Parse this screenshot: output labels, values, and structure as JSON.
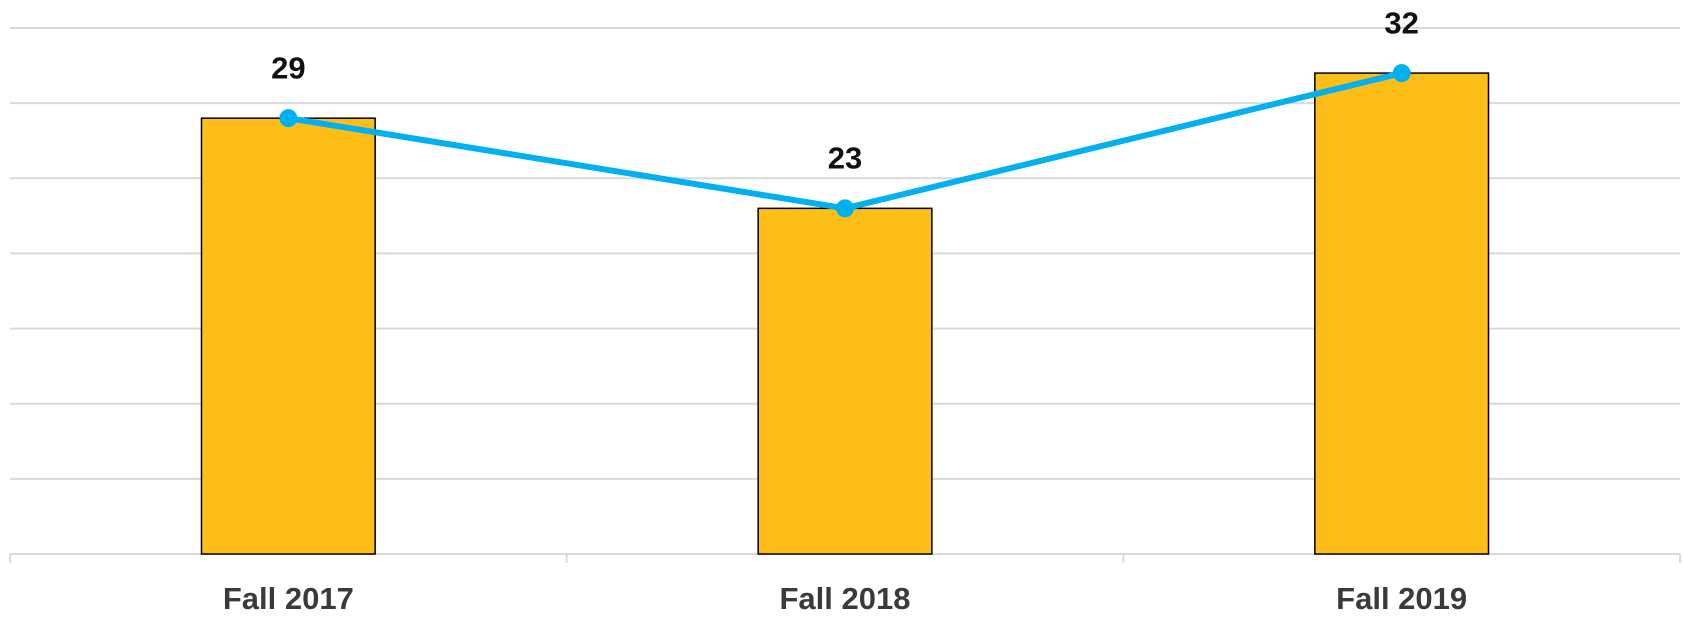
{
  "chart_data": {
    "type": "bar-line",
    "categories": [
      "Fall 2017",
      "Fall 2018",
      "Fall 2019"
    ],
    "series": [
      {
        "type": "bar",
        "color": "#fdbf17",
        "values": [
          29,
          23,
          32
        ]
      },
      {
        "type": "line",
        "color": "#00b0f0",
        "values": [
          29,
          23,
          32
        ]
      }
    ],
    "ylim": [
      0,
      35
    ],
    "yticks": [
      0,
      5,
      10,
      15,
      20,
      25,
      30,
      35
    ],
    "grid": true
  }
}
